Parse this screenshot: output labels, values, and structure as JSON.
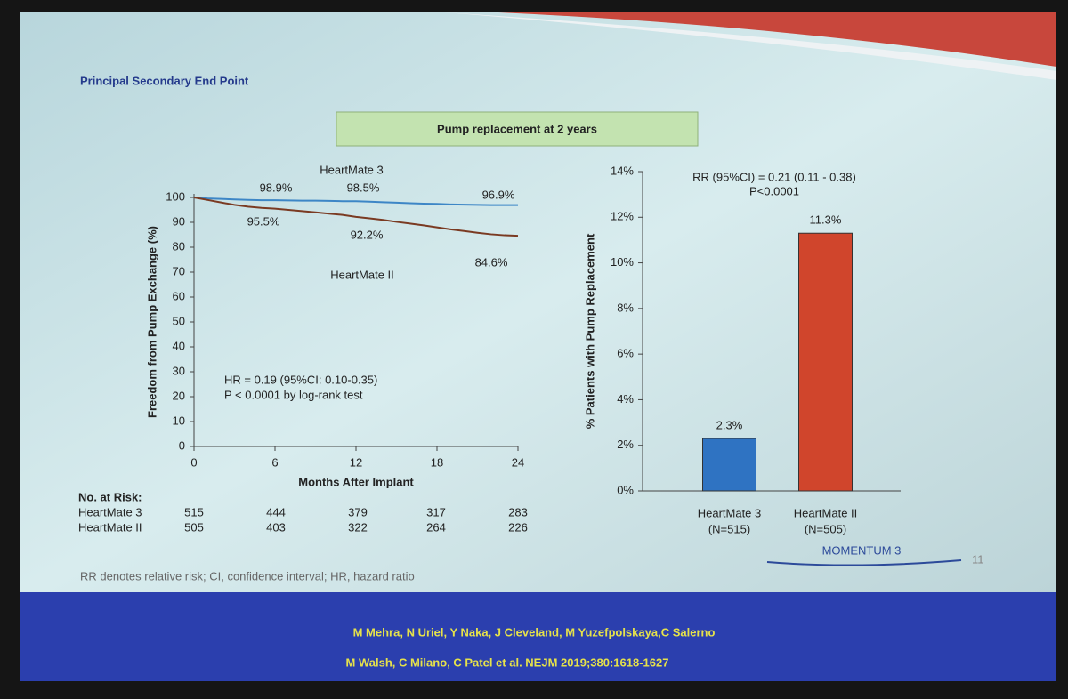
{
  "slide": {
    "title": "Principal Secondary End Point",
    "banner": "Pump replacement at 2 years",
    "footnote": "RR denotes relative risk; CI, confidence interval; HR, hazard ratio",
    "logo": "MOMENTUM 3",
    "page_number": "11",
    "citation": [
      "M Mehra, N Uriel, Y Naka, J Cleveland, M Yuzefpolskaya,C Salerno",
      "M Walsh, C Milano, C Patel et al. NEJM 2019;380:1618-1627"
    ]
  },
  "risk_table": {
    "title": "No. at Risk:",
    "rows": [
      [
        "HeartMate 3",
        515,
        444,
        379,
        317,
        283
      ],
      [
        "HeartMate II",
        505,
        403,
        322,
        264,
        226
      ]
    ]
  },
  "chart_data": [
    {
      "type": "line",
      "ylabel": "Freedom from Pump Exchange (%)",
      "xlabel": "Months After Implant",
      "x": [
        0,
        1,
        2,
        3,
        4,
        5,
        6,
        7,
        8,
        9,
        10,
        11,
        12,
        13,
        14,
        15,
        16,
        17,
        18,
        19,
        20,
        21,
        22,
        23,
        24
      ],
      "series": [
        {
          "name": "HeartMate 3",
          "color": "#3d86c6",
          "values": [
            100,
            99.6,
            99.4,
            99.2,
            99.0,
            98.9,
            98.9,
            98.8,
            98.7,
            98.7,
            98.6,
            98.5,
            98.5,
            98.3,
            98.1,
            97.9,
            97.7,
            97.5,
            97.4,
            97.2,
            97.1,
            97.0,
            96.9,
            96.9,
            96.9
          ]
        },
        {
          "name": "HeartMate II",
          "color": "#7a3a22",
          "values": [
            100,
            99,
            98,
            97,
            96.3,
            95.8,
            95.5,
            95,
            94.5,
            94,
            93.5,
            93,
            92.2,
            91.6,
            91,
            90.2,
            89.5,
            88.8,
            88,
            87.2,
            86.5,
            85.8,
            85.2,
            84.8,
            84.6
          ]
        }
      ],
      "xlim": [
        0,
        24
      ],
      "xticks": [
        0,
        6,
        12,
        18,
        24
      ],
      "ylim": [
        0,
        100
      ],
      "yticks": [
        0,
        10,
        20,
        30,
        40,
        50,
        60,
        70,
        80,
        90,
        100
      ],
      "annotations": [
        "98.9%",
        "98.5%",
        "96.9%",
        "95.5%",
        "92.2%",
        "84.6%",
        "HR = 0.19 (95%CI: 0.10-0.35)",
        "P < 0.0001 by log-rank test"
      ]
    },
    {
      "type": "bar",
      "ylabel": "% Patients with Pump Replacement",
      "categories": [
        "HeartMate 3",
        "HeartMate II"
      ],
      "category_sublabels": [
        "(N=515)",
        "(N=505)"
      ],
      "values": [
        2.3,
        11.3
      ],
      "value_labels": [
        "2.3%",
        "11.3%"
      ],
      "colors": [
        "#2f73c2",
        "#d0452c"
      ],
      "ylim": [
        0,
        14
      ],
      "yticks": [
        {
          "value": 0,
          "label": "0%"
        },
        {
          "value": 2,
          "label": "2%"
        },
        {
          "value": 4,
          "label": "4%"
        },
        {
          "value": 6,
          "label": "6%"
        },
        {
          "value": 8,
          "label": "8%"
        },
        {
          "value": 10,
          "label": "10%"
        },
        {
          "value": 12,
          "label": "12%"
        },
        {
          "value": 14,
          "label": "14%"
        }
      ],
      "annotations": [
        "RR (95%CI) = 0.21 (0.11 - 0.38)",
        "P<0.0001"
      ]
    }
  ]
}
